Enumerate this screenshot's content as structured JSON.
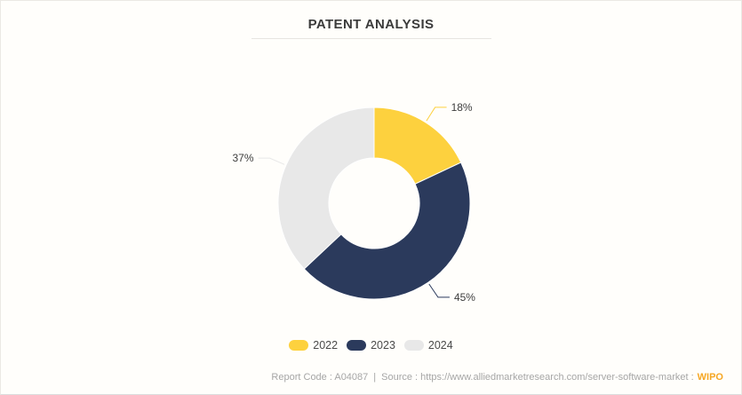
{
  "page": {
    "title": "PATENT ANALYSIS",
    "background": "#FFFEFB"
  },
  "footer": {
    "report_code": "Report Code : A04087",
    "separator": "|",
    "source_text": "Source : https://www.alliedmarketresearch.com/server-software-market :",
    "source_link": "WIPO",
    "link_color": "#F6A723",
    "text_color": "#A6A6A6"
  },
  "chart_data": {
    "type": "pie",
    "subtype": "donut",
    "title": "PATENT ANALYSIS",
    "units": "%",
    "start_angle_deg": 0,
    "direction": "clockwise",
    "inner_radius_ratio": 0.47,
    "legend_position": "bottom",
    "categories": [
      "2022",
      "2023",
      "2024"
    ],
    "series": [
      {
        "name": "2022",
        "value": 18,
        "label": "18%",
        "color": "#FDD13E"
      },
      {
        "name": "2023",
        "value": 45,
        "label": "45%",
        "color": "#2B3A5C"
      },
      {
        "name": "2024",
        "value": 37,
        "label": "37%",
        "color": "#E8E8E8"
      }
    ]
  }
}
